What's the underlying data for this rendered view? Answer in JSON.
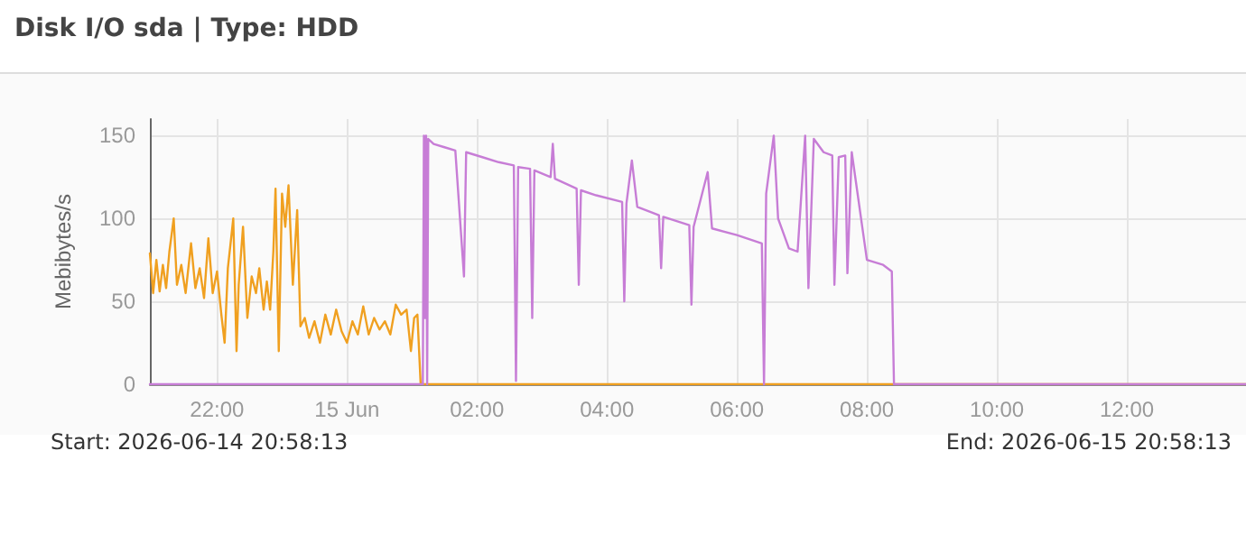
{
  "chart_data": {
    "type": "line",
    "title": "Disk I/O sda | Type: HDD",
    "ylabel": "Mebibytes/s",
    "annotations": [
      "Start: 2026-06-14 20:58:13",
      "End: 2026-06-15 20:58:13"
    ],
    "xlim": [
      "2026-06-14T20:58",
      "2026-06-15T13:50"
    ],
    "xticks": [
      {
        "value": "2026-06-14T22:00",
        "label": "22:00"
      },
      {
        "value": "2026-06-15T00:00",
        "label": "15 Jun"
      },
      {
        "value": "2026-06-15T02:00",
        "label": "02:00"
      },
      {
        "value": "2026-06-15T04:00",
        "label": "04:00"
      },
      {
        "value": "2026-06-15T06:00",
        "label": "06:00"
      },
      {
        "value": "2026-06-15T08:00",
        "label": "08:00"
      },
      {
        "value": "2026-06-15T10:00",
        "label": "10:00"
      },
      {
        "value": "2026-06-15T12:00",
        "label": "12:00"
      }
    ],
    "ylim": [
      0,
      160
    ],
    "yticks": [
      0,
      50,
      100,
      150
    ],
    "grid": true,
    "marker": "none",
    "line_style": "solid",
    "series": [
      {
        "color": "#f0a020",
        "x": [
          "2026-06-14T20:58",
          "2026-06-14T21:01",
          "2026-06-14T21:04",
          "2026-06-14T21:07",
          "2026-06-14T21:10",
          "2026-06-14T21:13",
          "2026-06-14T21:16",
          "2026-06-14T21:20",
          "2026-06-14T21:23",
          "2026-06-14T21:27",
          "2026-06-14T21:31",
          "2026-06-14T21:36",
          "2026-06-14T21:40",
          "2026-06-14T21:44",
          "2026-06-14T21:48",
          "2026-06-14T21:52",
          "2026-06-14T21:56",
          "2026-06-14T22:00",
          "2026-06-14T22:04",
          "2026-06-14T22:07",
          "2026-06-14T22:10",
          "2026-06-14T22:15",
          "2026-06-14T22:18",
          "2026-06-14T22:20",
          "2026-06-14T22:24",
          "2026-06-14T22:28",
          "2026-06-14T22:32",
          "2026-06-14T22:36",
          "2026-06-14T22:39",
          "2026-06-14T22:43",
          "2026-06-14T22:46",
          "2026-06-14T22:49",
          "2026-06-14T22:52",
          "2026-06-14T22:54",
          "2026-06-14T22:57",
          "2026-06-14T23:00",
          "2026-06-14T23:03",
          "2026-06-14T23:06",
          "2026-06-14T23:10",
          "2026-06-14T23:14",
          "2026-06-14T23:17",
          "2026-06-14T23:21",
          "2026-06-14T23:25",
          "2026-06-14T23:30",
          "2026-06-14T23:35",
          "2026-06-14T23:40",
          "2026-06-14T23:45",
          "2026-06-14T23:50",
          "2026-06-14T23:55",
          "2026-06-15T00:00",
          "2026-06-15T00:05",
          "2026-06-15T00:10",
          "2026-06-15T00:15",
          "2026-06-15T00:20",
          "2026-06-15T00:25",
          "2026-06-15T00:30",
          "2026-06-15T00:35",
          "2026-06-15T00:40",
          "2026-06-15T00:45",
          "2026-06-15T00:50",
          "2026-06-15T00:55",
          "2026-06-15T00:59",
          "2026-06-15T01:02",
          "2026-06-15T01:05",
          "2026-06-15T01:08",
          "2026-06-15T13:50"
        ],
        "values": [
          79,
          55,
          75,
          56,
          72,
          58,
          80,
          100,
          60,
          72,
          55,
          85,
          58,
          70,
          52,
          88,
          55,
          68,
          42,
          25,
          70,
          100,
          20,
          60,
          95,
          40,
          65,
          55,
          70,
          45,
          62,
          45,
          80,
          118,
          20,
          115,
          95,
          120,
          60,
          105,
          35,
          40,
          28,
          38,
          25,
          42,
          30,
          45,
          32,
          25,
          38,
          30,
          47,
          30,
          40,
          33,
          38,
          30,
          48,
          42,
          45,
          20,
          40,
          42,
          0,
          0
        ]
      },
      {
        "color": "#c77dd6",
        "x": [
          "2026-06-14T20:58",
          "2026-06-15T01:10",
          "2026-06-15T01:11",
          "2026-06-15T01:12",
          "2026-06-15T01:13",
          "2026-06-15T01:14",
          "2026-06-15T01:15",
          "2026-06-15T01:20",
          "2026-06-15T01:30",
          "2026-06-15T01:40",
          "2026-06-15T01:48",
          "2026-06-15T01:50",
          "2026-06-15T02:05",
          "2026-06-15T02:20",
          "2026-06-15T02:34",
          "2026-06-15T02:36",
          "2026-06-15T02:38",
          "2026-06-15T02:49",
          "2026-06-15T02:51",
          "2026-06-15T02:53",
          "2026-06-15T03:08",
          "2026-06-15T03:10",
          "2026-06-15T03:12",
          "2026-06-15T03:32",
          "2026-06-15T03:34",
          "2026-06-15T03:36",
          "2026-06-15T03:50",
          "2026-06-15T04:14",
          "2026-06-15T04:16",
          "2026-06-15T04:18",
          "2026-06-15T04:23",
          "2026-06-15T04:28",
          "2026-06-15T04:48",
          "2026-06-15T04:50",
          "2026-06-15T04:52",
          "2026-06-15T05:16",
          "2026-06-15T05:18",
          "2026-06-15T05:20",
          "2026-06-15T05:33",
          "2026-06-15T05:37",
          "2026-06-15T06:00",
          "2026-06-15T06:23",
          "2026-06-15T06:25",
          "2026-06-15T06:27",
          "2026-06-15T06:34",
          "2026-06-15T06:38",
          "2026-06-15T06:48",
          "2026-06-15T06:56",
          "2026-06-15T07:03",
          "2026-06-15T07:06",
          "2026-06-15T07:11",
          "2026-06-15T07:20",
          "2026-06-15T07:28",
          "2026-06-15T07:30",
          "2026-06-15T07:34",
          "2026-06-15T07:40",
          "2026-06-15T07:42",
          "2026-06-15T07:46",
          "2026-06-15T08:00",
          "2026-06-15T08:15",
          "2026-06-15T08:23",
          "2026-06-15T08:25",
          "2026-06-15T13:50"
        ],
        "values": [
          0,
          0,
          150,
          40,
          150,
          0,
          148,
          145,
          143,
          141,
          65,
          140,
          137,
          134,
          132,
          2,
          131,
          130,
          40,
          129,
          125,
          145,
          124,
          118,
          60,
          117,
          114,
          110,
          50,
          109,
          135,
          107,
          102,
          70,
          101,
          96,
          48,
          95,
          128,
          94,
          90,
          85,
          0,
          115,
          150,
          100,
          82,
          80,
          150,
          58,
          148,
          140,
          138,
          60,
          137,
          138,
          67,
          140,
          75,
          72,
          68,
          0,
          0
        ]
      }
    ]
  }
}
